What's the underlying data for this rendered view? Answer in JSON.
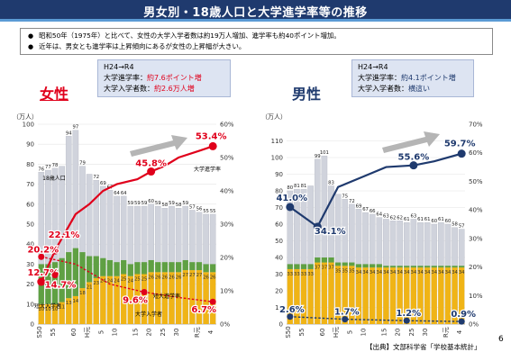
{
  "title": "男女別・18歳人口と大学進学率等の推移",
  "bullets": [
    "昭和50年（1975年）と比べて、女性の大学入学者数は約19万人増加、進学率も約40ポイント増加。",
    "近年は、男女とも進学率は上昇傾向にあるが女性の上昇幅が大きい。"
  ],
  "bullet_marker": "●",
  "source": "【出典】文部科学省「学校基本統計」",
  "page_number": "6",
  "female_panel": {
    "gender_label": "女性",
    "box": {
      "heading": "H24→R4",
      "rate_label": "大学進学率：",
      "rate_value": "約7.6ポイント増",
      "count_label": "大学入学者数：",
      "count_value": "約2.6万人増"
    },
    "inline_labels": {
      "population": "18歳人口",
      "univ_rate": "大学進学率",
      "junior_college_count": "短大入学者",
      "junior_college_rate": "短大進学率",
      "univ_count": "大学入学者"
    }
  },
  "male_panel": {
    "gender_label": "男性",
    "box": {
      "heading": "H24→R4",
      "rate_label": "大学進学率：",
      "rate_value": "約4.1ポイント増",
      "count_label": "大学入学者数：",
      "count_value": "横這い"
    }
  },
  "colors": {
    "title_bg": "#1f3a6e",
    "female_accent": "#e0001b",
    "male_accent": "#1f3a6e",
    "population_bar": "#d0d3dc",
    "junior_college_bar": "#5fa043",
    "university_bar": "#f0b416"
  },
  "chart_data": [
    {
      "type": "bar",
      "panel": "female",
      "y_unit_label": "（万人）",
      "ylim": [
        0,
        100
      ],
      "y2lim": [
        0,
        60
      ],
      "y_ticks": [
        "0",
        "10",
        "20",
        "30",
        "40",
        "50",
        "60",
        "70",
        "80",
        "90",
        "100"
      ],
      "y2_ticks": [
        "0%",
        "10%",
        "20%",
        "30%",
        "40%",
        "50%",
        "60%"
      ],
      "x_tick_labels": [
        "S50",
        "55",
        "60",
        "H元",
        "5",
        "10",
        "15",
        "20",
        "25",
        "30",
        "R元",
        "4"
      ],
      "population_top_labels": [
        "76",
        "77",
        "78",
        "",
        "94",
        "97",
        "79",
        "",
        "72",
        "69",
        "67",
        "64",
        "64",
        "59",
        "59",
        "59",
        "60",
        "59",
        "58",
        "59",
        "58",
        "59",
        "57",
        "56",
        "55",
        "55"
      ],
      "series": [
        {
          "name": "18歳人口",
          "values": [
            76,
            77,
            78,
            79,
            94,
            97,
            79,
            75,
            72,
            69,
            67,
            64,
            64,
            59,
            59,
            59,
            60,
            59,
            58,
            59,
            58,
            59,
            57,
            56,
            55,
            55
          ]
        },
        {
          "name": "短大入学者",
          "values": [
            20,
            20,
            21,
            22,
            23,
            24,
            18,
            13,
            11,
            9,
            8,
            7,
            7,
            6,
            6,
            6,
            6,
            5,
            5,
            5,
            5,
            5,
            4,
            4,
            4,
            4
          ]
        },
        {
          "name": "大学入学者",
          "values": [
            10,
            10,
            10,
            11,
            13,
            14,
            18,
            21,
            23,
            24,
            24,
            24,
            25,
            24,
            25,
            25,
            26,
            26,
            26,
            26,
            26,
            27,
            27,
            27,
            26,
            26
          ]
        }
      ],
      "rate_series": [
        {
          "name": "大学進学率",
          "values": [
            12.7,
            22.1,
            33.0,
            36.0,
            40.0,
            42.0,
            43.5,
            45.8,
            47.5,
            50.0,
            52.0,
            53.4
          ],
          "label_points": [
            [
              0,
              "12.7%"
            ],
            [
              1,
              "22.1%"
            ],
            [
              7,
              "45.8%"
            ],
            [
              11,
              "53.4%"
            ]
          ]
        },
        {
          "name": "短大進学率",
          "values": [
            20.2,
            18.0,
            12.0,
            9.6,
            8.0,
            6.7
          ],
          "label_points": [
            [
              0,
              "20.2%"
            ],
            [
              3,
              "9.6%"
            ],
            [
              5,
              "6.7%"
            ]
          ]
        },
        {
          "name": "",
          "values": [
            14.7
          ],
          "label_points": [
            [
              0,
              "14.7%"
            ]
          ]
        }
      ]
    },
    {
      "type": "bar",
      "panel": "male",
      "y_unit_label": "（万人）",
      "ylim": [
        0,
        120
      ],
      "y2lim": [
        0,
        70
      ],
      "y_ticks": [
        "0",
        "10",
        "20",
        "30",
        "40",
        "50",
        "60",
        "70",
        "80",
        "90",
        "100",
        "110"
      ],
      "y2_ticks": [
        "0%",
        "10%",
        "20%",
        "30%",
        "40%",
        "50%",
        "60%",
        "70%"
      ],
      "x_tick_labels": [
        "S50",
        "55",
        "60",
        "H元",
        "5",
        "10",
        "15",
        "20",
        "25",
        "30",
        "R元",
        "4"
      ],
      "population_top_labels": [
        "80",
        "81",
        "81",
        "",
        "99",
        "101",
        "83",
        "",
        "75",
        "72",
        "69",
        "67",
        "66",
        "64",
        "63",
        "62",
        "62",
        "61",
        "63",
        "61",
        "61",
        "60",
        "61",
        "60",
        "58",
        "57"
      ],
      "series": [
        {
          "name": "18歳人口",
          "values": [
            80,
            81,
            81,
            83,
            99,
            101,
            83,
            78,
            75,
            72,
            69,
            67,
            66,
            64,
            63,
            62,
            62,
            61,
            63,
            61,
            61,
            60,
            61,
            60,
            58,
            57
          ]
        },
        {
          "name": "短大入学者",
          "values": [
            3,
            3,
            3,
            3,
            3,
            3,
            3,
            2,
            2,
            2,
            2,
            2,
            2,
            2,
            1,
            1,
            1,
            1,
            1,
            1,
            1,
            1,
            1,
            1,
            1,
            1
          ]
        },
        {
          "name": "大学入学者",
          "values": [
            33,
            33,
            33,
            33,
            37,
            37,
            37,
            35,
            35,
            35,
            34,
            34,
            34,
            34,
            34,
            34,
            34,
            34,
            34,
            34,
            34,
            34,
            34,
            34,
            34,
            34
          ]
        }
      ],
      "rate_series": [
        {
          "name": "大学進学率",
          "values": [
            41.0,
            34.1,
            48.0,
            52.0,
            55.0,
            55.6,
            57.0,
            59.7
          ],
          "label_points": [
            [
              0,
              "41.0%"
            ],
            [
              1,
              "34.1%"
            ],
            [
              5,
              "55.6%"
            ],
            [
              7,
              "59.7%"
            ]
          ]
        },
        {
          "name": "短大進学率",
          "values": [
            2.6,
            1.7,
            1.2,
            0.9
          ],
          "label_points": [
            [
              0,
              "2.6%"
            ],
            [
              1,
              "1.7%"
            ],
            [
              2,
              "1.2%"
            ],
            [
              3,
              "0.9%"
            ]
          ]
        }
      ]
    }
  ]
}
